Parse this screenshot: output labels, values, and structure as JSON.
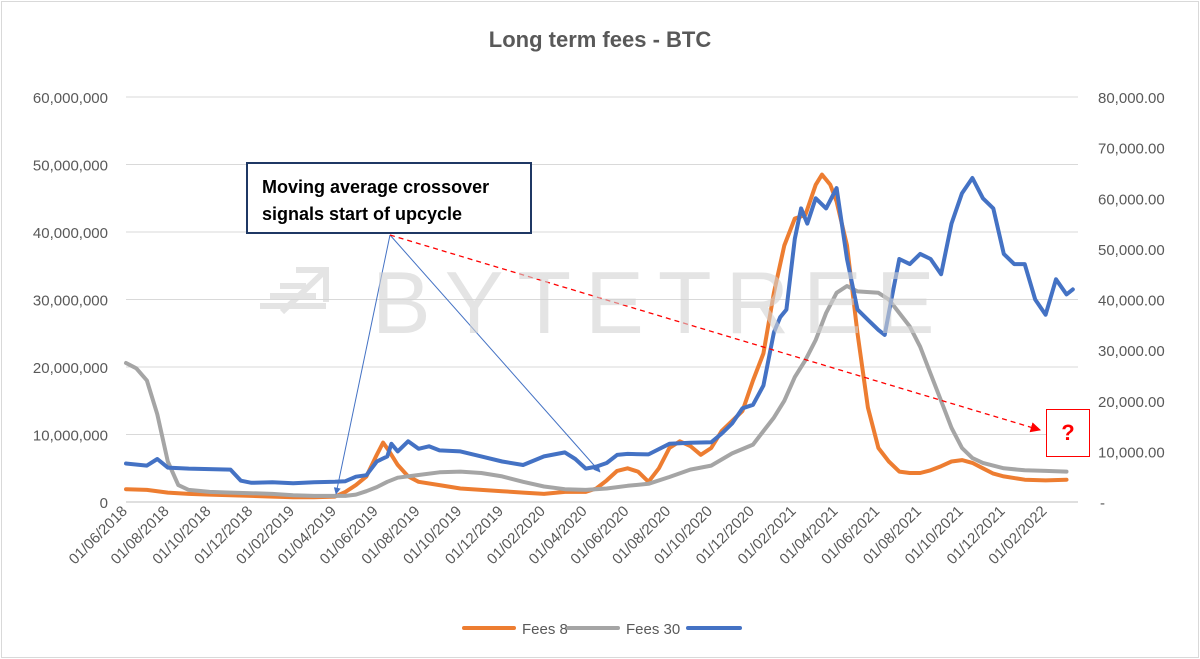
{
  "chart_data": {
    "type": "line",
    "title": "Long term fees - BTC",
    "left_axis": {
      "min": 0,
      "max": 60000000,
      "ticks": [
        0,
        10000000,
        20000000,
        30000000,
        40000000,
        50000000,
        60000000
      ],
      "tick_labels": [
        "0",
        "10,000,000",
        "20,000,000",
        "30,000,000",
        "40,000,000",
        "50,000,000",
        "60,000,000"
      ]
    },
    "right_axis": {
      "min": 0,
      "max": 80000,
      "ticks": [
        0,
        10000,
        20000,
        30000,
        40000,
        50000,
        60000,
        70000,
        80000
      ],
      "tick_labels": [
        "-",
        "10,000.00",
        "20,000.00",
        "30,000.00",
        "40,000.00",
        "50,000.00",
        "60,000.00",
        "70,000.00",
        "80,000.00"
      ]
    },
    "x_tick_labels": [
      "01/06/2018",
      "01/08/2018",
      "01/10/2018",
      "01/12/2018",
      "01/02/2019",
      "01/04/2019",
      "01/06/2019",
      "01/08/2019",
      "01/10/2019",
      "01/12/2019",
      "01/02/2020",
      "01/04/2020",
      "01/06/2020",
      "01/08/2020",
      "01/10/2020",
      "01/12/2020",
      "01/02/2021",
      "01/04/2021",
      "01/06/2021",
      "01/08/2021",
      "01/10/2021",
      "01/12/2021",
      "01/02/2022"
    ],
    "x_months_span": 45.5,
    "gridlines": true,
    "legend_position": "bottom",
    "series": [
      {
        "name": "Fees 8",
        "axis": "left",
        "color": "#ed7d31",
        "points": [
          [
            0,
            1900000
          ],
          [
            1,
            1800000
          ],
          [
            2,
            1400000
          ],
          [
            3,
            1200000
          ],
          [
            4,
            1100000
          ],
          [
            5,
            1000000
          ],
          [
            6,
            900000
          ],
          [
            7,
            800000
          ],
          [
            8,
            700000
          ],
          [
            9,
            700000
          ],
          [
            10,
            800000
          ],
          [
            10.5,
            1500000
          ],
          [
            11,
            2500000
          ],
          [
            11.5,
            3800000
          ],
          [
            12,
            7000000
          ],
          [
            12.3,
            8800000
          ],
          [
            12.6,
            7500000
          ],
          [
            13,
            5500000
          ],
          [
            13.5,
            3800000
          ],
          [
            14,
            3000000
          ],
          [
            15,
            2500000
          ],
          [
            16,
            2000000
          ],
          [
            17,
            1800000
          ],
          [
            18,
            1600000
          ],
          [
            19,
            1400000
          ],
          [
            20,
            1200000
          ],
          [
            21,
            1500000
          ],
          [
            22,
            1500000
          ],
          [
            22.5,
            2000000
          ],
          [
            23,
            3200000
          ],
          [
            23.5,
            4600000
          ],
          [
            24,
            5000000
          ],
          [
            24.5,
            4500000
          ],
          [
            25,
            3000000
          ],
          [
            25.5,
            5000000
          ],
          [
            26,
            8000000
          ],
          [
            26.5,
            9000000
          ],
          [
            27,
            8300000
          ],
          [
            27.5,
            7000000
          ],
          [
            28,
            8000000
          ],
          [
            28.5,
            10500000
          ],
          [
            29,
            12000000
          ],
          [
            29.5,
            13500000
          ],
          [
            30,
            18000000
          ],
          [
            30.5,
            22000000
          ],
          [
            31,
            31000000
          ],
          [
            31.5,
            38000000
          ],
          [
            32,
            42000000
          ],
          [
            32.5,
            42500000
          ],
          [
            33,
            47000000
          ],
          [
            33.3,
            48500000
          ],
          [
            33.7,
            47000000
          ],
          [
            34,
            44500000
          ],
          [
            34.5,
            38000000
          ],
          [
            35,
            25000000
          ],
          [
            35.5,
            14000000
          ],
          [
            36,
            8000000
          ],
          [
            36.5,
            6000000
          ],
          [
            37,
            4500000
          ],
          [
            37.5,
            4300000
          ],
          [
            38,
            4300000
          ],
          [
            38.5,
            4700000
          ],
          [
            39,
            5300000
          ],
          [
            39.5,
            6000000
          ],
          [
            40,
            6200000
          ],
          [
            40.5,
            5800000
          ],
          [
            41,
            5000000
          ],
          [
            41.5,
            4200000
          ],
          [
            42,
            3800000
          ],
          [
            43,
            3300000
          ],
          [
            44,
            3200000
          ],
          [
            45,
            3300000
          ]
        ]
      },
      {
        "name": "Fees 30",
        "axis": "left",
        "color": "#a5a5a5",
        "points": [
          [
            0,
            20600000
          ],
          [
            0.5,
            19800000
          ],
          [
            1,
            18000000
          ],
          [
            1.5,
            13000000
          ],
          [
            2,
            6000000
          ],
          [
            2.5,
            2500000
          ],
          [
            3,
            1800000
          ],
          [
            4,
            1500000
          ],
          [
            5,
            1400000
          ],
          [
            6,
            1300000
          ],
          [
            7,
            1200000
          ],
          [
            8,
            1000000
          ],
          [
            9,
            900000
          ],
          [
            10,
            900000
          ],
          [
            10.5,
            900000
          ],
          [
            11,
            1100000
          ],
          [
            11.5,
            1600000
          ],
          [
            12,
            2200000
          ],
          [
            12.5,
            3000000
          ],
          [
            13,
            3600000
          ],
          [
            14,
            4000000
          ],
          [
            15,
            4400000
          ],
          [
            16,
            4500000
          ],
          [
            17,
            4300000
          ],
          [
            18,
            3800000
          ],
          [
            19,
            3000000
          ],
          [
            20,
            2300000
          ],
          [
            21,
            1900000
          ],
          [
            22,
            1800000
          ],
          [
            23,
            2000000
          ],
          [
            24,
            2400000
          ],
          [
            25,
            2700000
          ],
          [
            26,
            3700000
          ],
          [
            27,
            4800000
          ],
          [
            28,
            5400000
          ],
          [
            29,
            7200000
          ],
          [
            30,
            8500000
          ],
          [
            30.5,
            10500000
          ],
          [
            31,
            12500000
          ],
          [
            31.5,
            15000000
          ],
          [
            32,
            18500000
          ],
          [
            32.5,
            21000000
          ],
          [
            33,
            24000000
          ],
          [
            33.5,
            28000000
          ],
          [
            34,
            31000000
          ],
          [
            34.5,
            32000000
          ],
          [
            35,
            31200000
          ],
          [
            36,
            31000000
          ],
          [
            36.5,
            30000000
          ],
          [
            37,
            28000000
          ],
          [
            37.5,
            26000000
          ],
          [
            38,
            23000000
          ],
          [
            38.5,
            19000000
          ],
          [
            39,
            15000000
          ],
          [
            39.5,
            11000000
          ],
          [
            40,
            8000000
          ],
          [
            40.5,
            6500000
          ],
          [
            41,
            5800000
          ],
          [
            42,
            5000000
          ],
          [
            43,
            4700000
          ],
          [
            44,
            4600000
          ],
          [
            45,
            4500000
          ]
        ]
      },
      {
        "name": "",
        "axis": "right",
        "color": "#4472c4",
        "points": [
          [
            0,
            7600
          ],
          [
            1,
            7200
          ],
          [
            1.5,
            8500
          ],
          [
            2,
            6800
          ],
          [
            3,
            6600
          ],
          [
            4,
            6500
          ],
          [
            5,
            6400
          ],
          [
            5.5,
            4200
          ],
          [
            6,
            3800
          ],
          [
            7,
            3900
          ],
          [
            8,
            3700
          ],
          [
            9,
            3900
          ],
          [
            10,
            4000
          ],
          [
            10.5,
            4100
          ],
          [
            11,
            5000
          ],
          [
            11.5,
            5300
          ],
          [
            12,
            8000
          ],
          [
            12.5,
            9000
          ],
          [
            12.7,
            11500
          ],
          [
            13,
            10000
          ],
          [
            13.5,
            12000
          ],
          [
            14,
            10500
          ],
          [
            14.5,
            11000
          ],
          [
            15,
            10200
          ],
          [
            16,
            10000
          ],
          [
            17,
            9000
          ],
          [
            18,
            8000
          ],
          [
            19,
            7300
          ],
          [
            20,
            9000
          ],
          [
            21,
            9800
          ],
          [
            21.5,
            8500
          ],
          [
            22,
            6600
          ],
          [
            22.5,
            7000
          ],
          [
            23,
            7700
          ],
          [
            23.5,
            9300
          ],
          [
            24,
            9500
          ],
          [
            25,
            9400
          ],
          [
            26,
            11500
          ],
          [
            27,
            11700
          ],
          [
            28,
            11800
          ],
          [
            28.5,
            13500
          ],
          [
            29,
            15500
          ],
          [
            29.5,
            18500
          ],
          [
            30,
            19200
          ],
          [
            30.5,
            23000
          ],
          [
            31,
            33500
          ],
          [
            31.3,
            36500
          ],
          [
            31.6,
            38000
          ],
          [
            32,
            52000
          ],
          [
            32.3,
            58000
          ],
          [
            32.6,
            55000
          ],
          [
            33,
            60000
          ],
          [
            33.5,
            58000
          ],
          [
            34,
            62000
          ],
          [
            34.5,
            48000
          ],
          [
            35,
            38000
          ],
          [
            35.5,
            36000
          ],
          [
            36,
            34000
          ],
          [
            36.3,
            33000
          ],
          [
            36.6,
            39500
          ],
          [
            37,
            48000
          ],
          [
            37.5,
            47000
          ],
          [
            38,
            49000
          ],
          [
            38.5,
            48000
          ],
          [
            39,
            45000
          ],
          [
            39.5,
            55000
          ],
          [
            40,
            61000
          ],
          [
            40.5,
            64000
          ],
          [
            41,
            60000
          ],
          [
            41.5,
            58000
          ],
          [
            42,
            49000
          ],
          [
            42.5,
            47000
          ],
          [
            43,
            47000
          ],
          [
            43.5,
            40000
          ],
          [
            44,
            37000
          ],
          [
            44.5,
            44000
          ],
          [
            45,
            41000
          ],
          [
            45.3,
            42000
          ]
        ]
      }
    ],
    "annotations": {
      "callout": "Moving average crossover signals start of upcycle",
      "callout_lines": [
        "Moving average crossover",
        "signals start of upcycle"
      ],
      "question_mark": "?"
    },
    "watermark": "BYTETREE"
  }
}
